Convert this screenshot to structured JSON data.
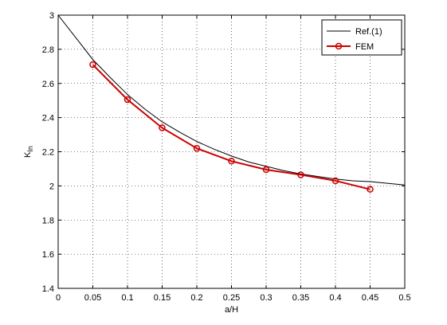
{
  "chart_data": {
    "type": "line",
    "title": "",
    "xlabel": "a/H",
    "ylabel": "K",
    "ylabel_sub": "In",
    "xlim": [
      0,
      0.5
    ],
    "ylim": [
      1.4,
      3
    ],
    "xticks": [
      0,
      0.05,
      0.1,
      0.15,
      0.2,
      0.25,
      0.3,
      0.35,
      0.4,
      0.45,
      0.5
    ],
    "yticks": [
      1.4,
      1.6,
      1.8,
      2,
      2.2,
      2.4,
      2.6,
      2.8,
      3
    ],
    "xtick_labels": [
      "0",
      "0.05",
      "0.1",
      "0.15",
      "0.2",
      "0.25",
      "0.3",
      "0.35",
      "0.4",
      "0.45",
      "0.5"
    ],
    "ytick_labels": [
      "1.4",
      "1.6",
      "1.8",
      "2",
      "2.2",
      "2.4",
      "2.6",
      "2.8",
      "3"
    ],
    "grid": "dotted",
    "legend_position": "top-right",
    "series": [
      {
        "name": "Ref.(1)",
        "color": "#000000",
        "marker": "none",
        "x": [
          0,
          0.025,
          0.05,
          0.075,
          0.1,
          0.125,
          0.15,
          0.175,
          0.2,
          0.225,
          0.25,
          0.275,
          0.3,
          0.325,
          0.35,
          0.375,
          0.4,
          0.425,
          0.45,
          0.475,
          0.5
        ],
        "y": [
          3.0,
          2.87,
          2.74,
          2.635,
          2.535,
          2.45,
          2.375,
          2.315,
          2.26,
          2.215,
          2.175,
          2.14,
          2.115,
          2.09,
          2.07,
          2.055,
          2.04,
          2.03,
          2.025,
          2.015,
          2.005
        ]
      },
      {
        "name": "FEM",
        "color": "#cc0000",
        "marker": "circle",
        "x": [
          0.05,
          0.1,
          0.15,
          0.2,
          0.25,
          0.3,
          0.35,
          0.4,
          0.45
        ],
        "y": [
          2.71,
          2.505,
          2.34,
          2.22,
          2.145,
          2.095,
          2.065,
          2.03,
          1.98
        ]
      }
    ]
  }
}
